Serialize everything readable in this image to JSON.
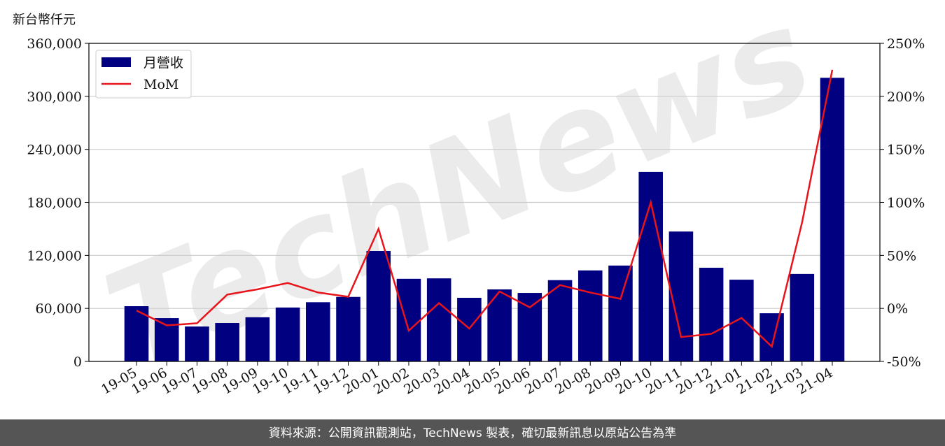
{
  "chart_data": {
    "type": "bar_line",
    "y_axis_label": "新台幣仟元",
    "watermark": "TechNews",
    "footer": "資料來源：公開資訊觀測站，TechNews 製表，確切最新訊息以原站公告為準",
    "categories": [
      "19-05",
      "19-06",
      "19-07",
      "19-08",
      "19-09",
      "19-10",
      "19-11",
      "19-12",
      "20-01",
      "20-02",
      "20-03",
      "20-04",
      "20-05",
      "20-06",
      "20-07",
      "20-08",
      "20-09",
      "20-10",
      "20-11",
      "20-12",
      "21-01",
      "21-02",
      "21-03",
      "21-04"
    ],
    "series": [
      {
        "name": "月營收",
        "type": "bar",
        "color": "#000080",
        "values": [
          62500,
          49000,
          39500,
          43500,
          50000,
          61000,
          67000,
          73000,
          125000,
          93500,
          94000,
          72000,
          81500,
          77500,
          92000,
          103000,
          108500,
          214500,
          147000,
          106000,
          92500,
          54500,
          99000,
          321000
        ]
      },
      {
        "name": "MoM",
        "type": "line",
        "axis": "y2",
        "color": "#e8141b",
        "values": [
          -2,
          -16,
          -14,
          13,
          18,
          24,
          15,
          11,
          75,
          -21,
          5,
          -19,
          16,
          1,
          22,
          15,
          9,
          100,
          -27,
          -24,
          -9,
          -36,
          81,
          225
        ]
      }
    ],
    "ylim": [
      0,
      360000
    ],
    "yticks": [
      0,
      {
        "value": 60000,
        "label": "60,000"
      },
      {
        "value": 120000,
        "label": "120,000"
      },
      {
        "value": 180000,
        "label": "180,000"
      },
      {
        "value": 240000,
        "label": "240,000"
      },
      {
        "value": 300000,
        "label": "300,000"
      },
      {
        "value": 360000,
        "label": "360,000"
      }
    ],
    "y2lim": [
      -50,
      250
    ],
    "y2ticks": [
      {
        "value": -50,
        "label": "-50%"
      },
      {
        "value": 0,
        "label": "0%"
      },
      {
        "value": 50,
        "label": "50%"
      },
      {
        "value": 100,
        "label": "100%"
      },
      {
        "value": 150,
        "label": "150%"
      },
      {
        "value": 200,
        "label": "200%"
      },
      {
        "value": 250,
        "label": "250%"
      }
    ],
    "grid": true,
    "legend": "upper left"
  }
}
